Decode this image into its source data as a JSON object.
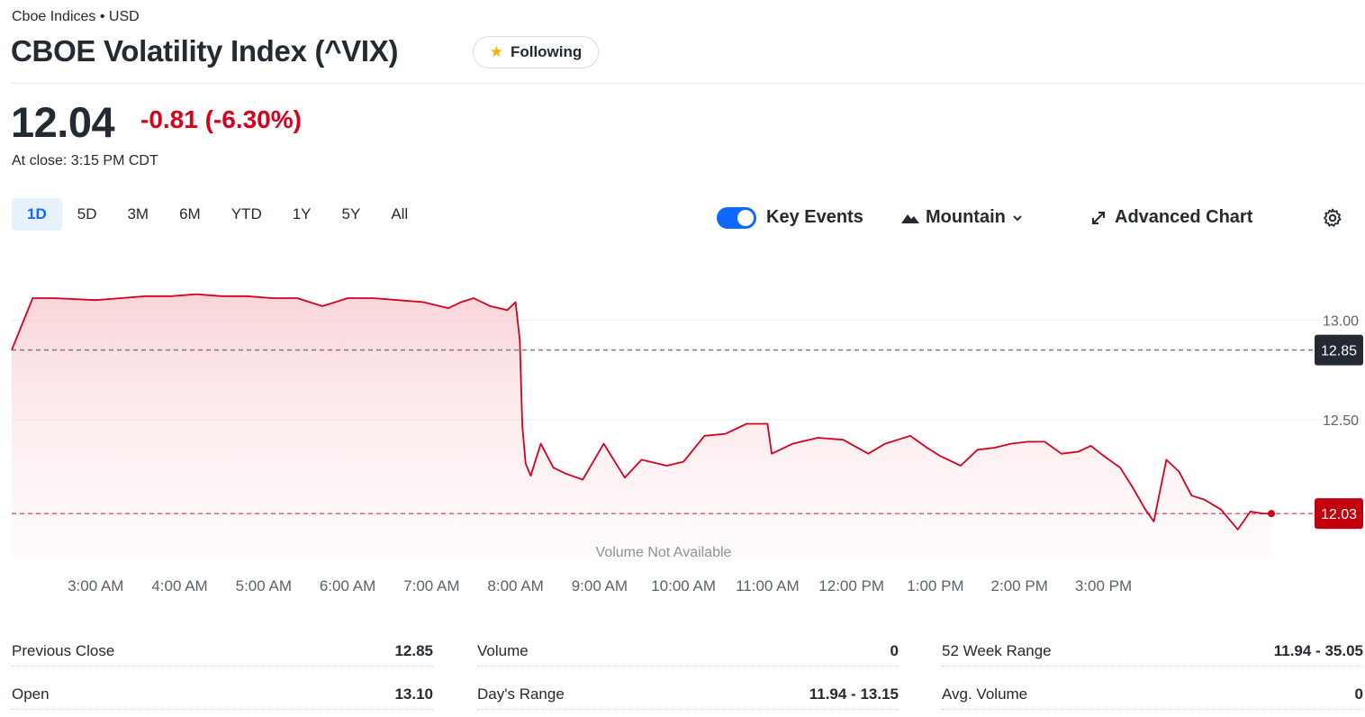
{
  "header": {
    "exchange": "Cboe Indices • USD",
    "title": "CBOE Volatility Index (^VIX)",
    "follow_label": "Following",
    "star_icon": "star-icon"
  },
  "quote": {
    "price": "12.04",
    "change": "-0.81 (-6.30%)",
    "close_time": "At close: 3:15 PM CDT",
    "colors": {
      "down": "#d6001c",
      "text": "#232a31"
    }
  },
  "range_tabs": [
    "1D",
    "5D",
    "3M",
    "6M",
    "YTD",
    "1Y",
    "5Y",
    "All"
  ],
  "active_range": "1D",
  "toolbar": {
    "key_events_label": "Key Events",
    "key_events_on": true,
    "chart_type_label": "Mountain",
    "advanced_chart_label": "Advanced Chart",
    "accent": "#0f69ff"
  },
  "chart_data": {
    "type": "area",
    "x_ticks": [
      "3:00 AM",
      "4:00 AM",
      "5:00 AM",
      "6:00 AM",
      "7:00 AM",
      "8:00 AM",
      "9:00 AM",
      "10:00 AM",
      "11:00 AM",
      "12:00 PM",
      "1:00 PM",
      "2:00 PM",
      "3:00 PM"
    ],
    "y_ticks": [
      "13.00",
      "12.50"
    ],
    "ylim": [
      11.85,
      13.25
    ],
    "previous_close": 12.85,
    "previous_close_label": "12.85",
    "current": 12.03,
    "current_label": "12.03",
    "volume_note": "Volume Not Available",
    "series": [
      {
        "values": [
          [
            2.0,
            12.85
          ],
          [
            2.25,
            13.11
          ],
          [
            2.5,
            13.11
          ],
          [
            3.0,
            13.1
          ],
          [
            3.3,
            13.11
          ],
          [
            3.6,
            13.12
          ],
          [
            3.9,
            13.12
          ],
          [
            4.2,
            13.13
          ],
          [
            4.5,
            13.12
          ],
          [
            4.8,
            13.12
          ],
          [
            5.1,
            13.11
          ],
          [
            5.4,
            13.11
          ],
          [
            5.7,
            13.07
          ],
          [
            6.0,
            13.11
          ],
          [
            6.3,
            13.11
          ],
          [
            6.6,
            13.1
          ],
          [
            6.9,
            13.09
          ],
          [
            7.2,
            13.06
          ],
          [
            7.35,
            13.09
          ],
          [
            7.5,
            13.11
          ],
          [
            7.7,
            13.07
          ],
          [
            7.9,
            13.05
          ],
          [
            8.0,
            13.09
          ],
          [
            8.05,
            12.9
          ],
          [
            8.08,
            12.47
          ],
          [
            8.12,
            12.28
          ],
          [
            8.18,
            12.22
          ],
          [
            8.3,
            12.38
          ],
          [
            8.45,
            12.26
          ],
          [
            8.6,
            12.23
          ],
          [
            8.8,
            12.2
          ],
          [
            9.05,
            12.38
          ],
          [
            9.3,
            12.21
          ],
          [
            9.5,
            12.3
          ],
          [
            9.8,
            12.27
          ],
          [
            10.0,
            12.29
          ],
          [
            10.25,
            12.42
          ],
          [
            10.5,
            12.43
          ],
          [
            10.75,
            12.48
          ],
          [
            11.0,
            12.48
          ],
          [
            11.05,
            12.33
          ],
          [
            11.3,
            12.38
          ],
          [
            11.6,
            12.41
          ],
          [
            11.9,
            12.4
          ],
          [
            12.2,
            12.33
          ],
          [
            12.4,
            12.38
          ],
          [
            12.7,
            12.42
          ],
          [
            12.9,
            12.36
          ],
          [
            13.05,
            12.32
          ],
          [
            13.3,
            12.27
          ],
          [
            13.5,
            12.35
          ],
          [
            13.7,
            12.36
          ],
          [
            13.9,
            12.38
          ],
          [
            14.1,
            12.39
          ],
          [
            14.3,
            12.39
          ],
          [
            14.5,
            12.33
          ],
          [
            14.7,
            12.34
          ],
          [
            14.85,
            12.37
          ],
          [
            15.0,
            12.32
          ],
          [
            15.2,
            12.26
          ],
          [
            15.35,
            12.16
          ],
          [
            15.5,
            12.05
          ],
          [
            15.6,
            11.99
          ],
          [
            15.75,
            12.3
          ],
          [
            15.9,
            12.24
          ],
          [
            16.05,
            12.12
          ],
          [
            16.2,
            12.1
          ],
          [
            16.4,
            12.05
          ],
          [
            16.6,
            11.95
          ],
          [
            16.75,
            12.04
          ],
          [
            16.9,
            12.03
          ],
          [
            17.0,
            12.03
          ]
        ]
      }
    ],
    "colors": {
      "line": "#d6001c",
      "fill_top": "#f7c6cc",
      "prev_close_line": "#6e7780",
      "badge_prev": "#232a31",
      "badge_current": "#c3000e"
    }
  },
  "stats": [
    [
      {
        "label": "Previous Close",
        "value": "12.85"
      },
      {
        "label": "Open",
        "value": "13.10"
      }
    ],
    [
      {
        "label": "Volume",
        "value": "0"
      },
      {
        "label": "Day's Range",
        "value": "11.94 - 13.15"
      }
    ],
    [
      {
        "label": "52 Week Range",
        "value": "11.94 - 35.05"
      },
      {
        "label": "Avg. Volume",
        "value": "0"
      }
    ]
  ]
}
